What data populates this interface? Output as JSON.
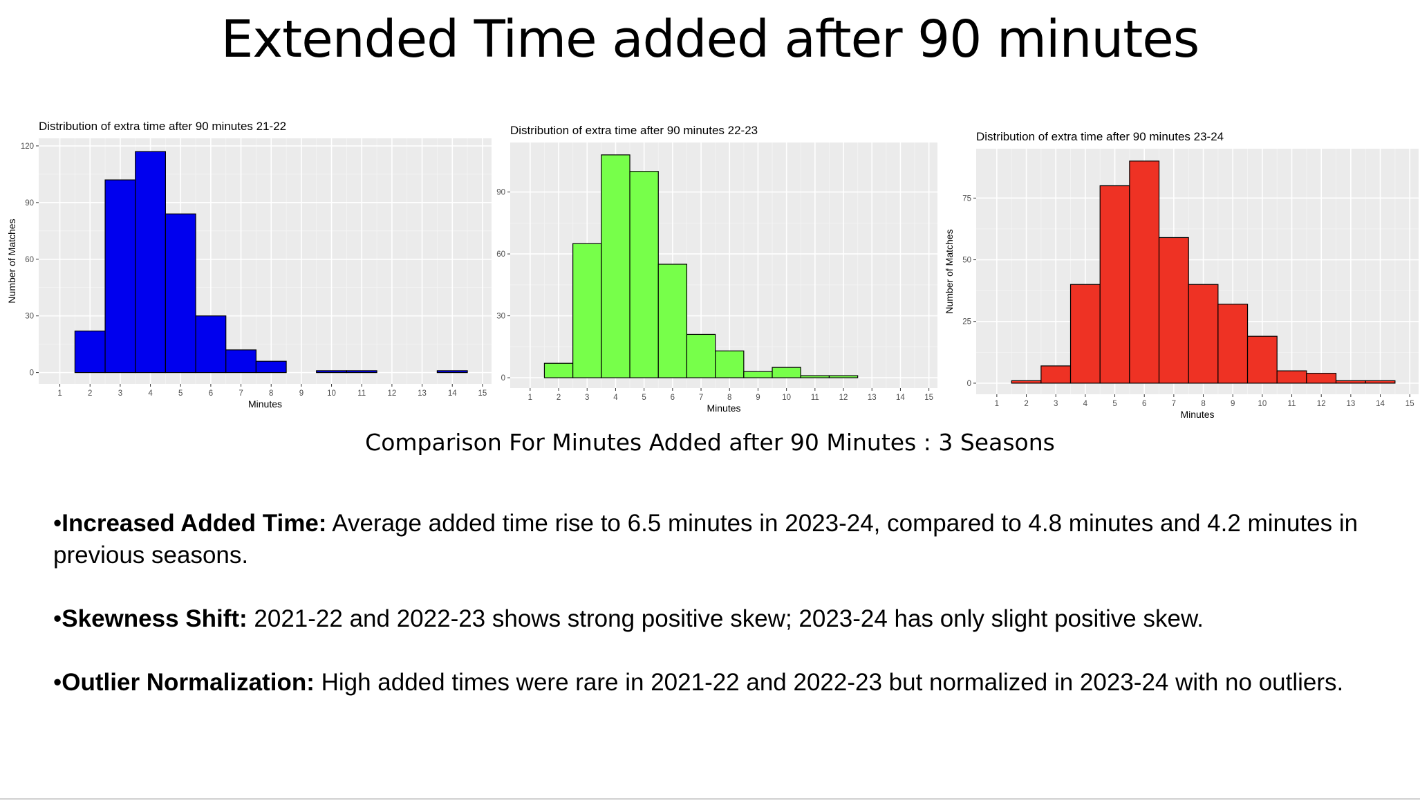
{
  "slide": {
    "title": "Extended Time added after 90 minutes",
    "caption": "Comparison For Minutes Added after 90 Minutes : 3 Seasons"
  },
  "bullets": [
    {
      "marker": "•",
      "heading": "Increased Added Time:",
      "text": " Average added time rise to 6.5 minutes in 2023-24, compared to 4.8 minutes and 4.2 minutes in previous seasons."
    },
    {
      "marker": "•",
      "heading": "Skewness Shift:",
      "text": " 2021-22 and 2022-23 shows strong positive skew; 2023-24 has only slight positive skew."
    },
    {
      "marker": "•",
      "heading": "Outlier Normalization:",
      "text": " High added times were rare in 2021-22 and 2022-23 but normalized in 2023-24 with no outliers."
    }
  ],
  "chart_data": [
    {
      "type": "bar",
      "title": "Distribution of extra time after 90 minutes 21-22",
      "xlabel": "Minutes",
      "ylabel": "Number of Matches",
      "fill": "#0000ee",
      "x_ticks": [
        1,
        2,
        3,
        4,
        5,
        6,
        7,
        8,
        9,
        10,
        11,
        12,
        13,
        14,
        15
      ],
      "xlim": [
        0.3,
        15.3
      ],
      "y_ticks": [
        0,
        30,
        60,
        90,
        120
      ],
      "ylim": [
        -6,
        124
      ],
      "categories": [
        2,
        3,
        4,
        5,
        6,
        7,
        8,
        9,
        10,
        11,
        12,
        13,
        14
      ],
      "values": [
        22,
        102,
        117,
        84,
        30,
        12,
        6,
        0,
        1,
        1,
        0,
        0,
        1
      ],
      "grid": true,
      "legend": "none"
    },
    {
      "type": "bar",
      "title": "Distribution of extra time after 90 minutes 22-23",
      "xlabel": "Minutes",
      "ylabel": "",
      "fill": "#77ff4a",
      "x_ticks": [
        1,
        2,
        3,
        4,
        5,
        6,
        7,
        8,
        9,
        10,
        11,
        12,
        13,
        14,
        15
      ],
      "xlim": [
        0.3,
        15.3
      ],
      "y_ticks": [
        0,
        30,
        60,
        90
      ],
      "ylim": [
        -5,
        114
      ],
      "categories": [
        2,
        3,
        4,
        5,
        6,
        7,
        8,
        9,
        10,
        11,
        12,
        13,
        14
      ],
      "values": [
        7,
        65,
        108,
        100,
        55,
        21,
        13,
        3,
        5,
        1,
        1,
        0,
        0
      ],
      "grid": true,
      "legend": "none"
    },
    {
      "type": "bar",
      "title": "Distribution of extra time after 90 minutes 23-24",
      "xlabel": "Minutes",
      "ylabel": "Number of Matches",
      "fill": "#ee3224",
      "x_ticks": [
        1,
        2,
        3,
        4,
        5,
        6,
        7,
        8,
        9,
        10,
        11,
        12,
        13,
        14,
        15
      ],
      "xlim": [
        0.3,
        15.3
      ],
      "y_ticks": [
        0,
        25,
        50,
        75
      ],
      "ylim": [
        -4.5,
        95
      ],
      "categories": [
        2,
        3,
        4,
        5,
        6,
        7,
        8,
        9,
        10,
        11,
        12,
        13,
        14
      ],
      "values": [
        1,
        7,
        40,
        80,
        90,
        59,
        40,
        32,
        19,
        5,
        4,
        1,
        1
      ],
      "grid": true,
      "legend": "none"
    }
  ]
}
